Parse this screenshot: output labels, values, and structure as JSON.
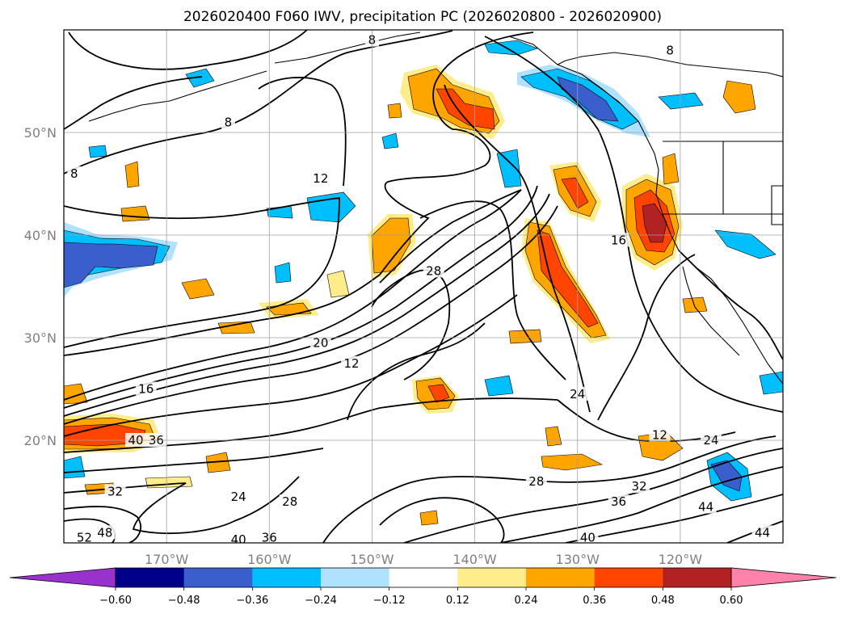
{
  "chart_data": {
    "type": "heatmap",
    "title": "2026020400 F060 IWV, precipitation PC (2026020800 - 2026020900)",
    "map": {
      "lon_range": [
        -180,
        -110
      ],
      "lat_range": [
        10,
        60
      ],
      "lat_ticks": [
        {
          "value": 20,
          "label": "20°N"
        },
        {
          "value": 30,
          "label": "30°N"
        },
        {
          "value": 40,
          "label": "40°N"
        },
        {
          "value": 50,
          "label": "50°N"
        }
      ],
      "lon_ticks": [
        {
          "value": -170,
          "label": "170°W"
        },
        {
          "value": -160,
          "label": "160°W"
        },
        {
          "value": -150,
          "label": "150°W"
        },
        {
          "value": -140,
          "label": "140°W"
        },
        {
          "value": -130,
          "label": "130°W"
        },
        {
          "value": -120,
          "label": "120°W"
        }
      ],
      "grid": true
    },
    "colorbar": {
      "orientation": "horizontal",
      "extend": "both",
      "ticks": [
        "−0.60",
        "−0.48",
        "−0.36",
        "−0.24",
        "−0.12",
        "0.12",
        "0.24",
        "0.36",
        "0.48",
        "0.60"
      ],
      "colors": [
        "#9932cc",
        "#00008b",
        "#3a5fcd",
        "#00bfff",
        "#b0e2ff",
        "#ffffff",
        "#ffec8b",
        "#ffa500",
        "#ff4500",
        "#b22222",
        "#ff82ab"
      ]
    },
    "contour_labels": [
      {
        "text": "8",
        "lon": -164,
        "lat": 51
      },
      {
        "text": "8",
        "lon": -179,
        "lat": 46
      },
      {
        "text": "8",
        "lon": -150,
        "lat": 59
      },
      {
        "text": "8",
        "lon": -121,
        "lat": 58
      },
      {
        "text": "12",
        "lon": -155,
        "lat": 45.5
      },
      {
        "text": "12",
        "lon": -152,
        "lat": 27.5
      },
      {
        "text": "12",
        "lon": -122,
        "lat": 20.5
      },
      {
        "text": "16",
        "lon": -126,
        "lat": 39.5
      },
      {
        "text": "16",
        "lon": -172,
        "lat": 25
      },
      {
        "text": "20",
        "lon": -155,
        "lat": 29.5
      },
      {
        "text": "24",
        "lon": -130,
        "lat": 24.5
      },
      {
        "text": "24",
        "lon": -163,
        "lat": 14.5
      },
      {
        "text": "24",
        "lon": -117,
        "lat": 20
      },
      {
        "text": "28",
        "lon": -144,
        "lat": 36.5
      },
      {
        "text": "28",
        "lon": -158,
        "lat": 14
      },
      {
        "text": "28",
        "lon": -134,
        "lat": 16
      },
      {
        "text": "32",
        "lon": -175,
        "lat": 15
      },
      {
        "text": "32",
        "lon": -124,
        "lat": 15.5
      },
      {
        "text": "36",
        "lon": -171,
        "lat": 20
      },
      {
        "text": "36",
        "lon": -126,
        "lat": 14
      },
      {
        "text": "36",
        "lon": -160,
        "lat": 10.5
      },
      {
        "text": "40",
        "lon": -173,
        "lat": 20
      },
      {
        "text": "40",
        "lon": -129,
        "lat": 10.5
      },
      {
        "text": "40",
        "lon": -163,
        "lat": 10.3
      },
      {
        "text": "44",
        "lon": -117.5,
        "lat": 13.5
      },
      {
        "text": "44",
        "lon": -112,
        "lat": 11
      },
      {
        "text": "48",
        "lon": -176,
        "lat": 11
      },
      {
        "text": "52",
        "lon": -178,
        "lat": 10.5
      }
    ]
  }
}
